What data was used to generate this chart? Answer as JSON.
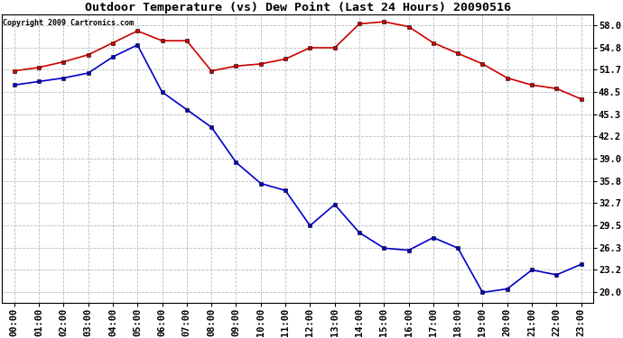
{
  "title": "Outdoor Temperature (vs) Dew Point (Last 24 Hours) 20090516",
  "copyright_text": "Copyright 2009 Cartronics.com",
  "x_labels": [
    "00:00",
    "01:00",
    "02:00",
    "03:00",
    "04:00",
    "05:00",
    "06:00",
    "07:00",
    "08:00",
    "09:00",
    "10:00",
    "11:00",
    "12:00",
    "13:00",
    "14:00",
    "15:00",
    "16:00",
    "17:00",
    "18:00",
    "19:00",
    "20:00",
    "21:00",
    "22:00",
    "23:00"
  ],
  "temp_data": [
    51.5,
    52.0,
    52.8,
    53.8,
    55.5,
    57.2,
    55.8,
    55.8,
    51.5,
    52.2,
    52.5,
    53.2,
    54.8,
    54.8,
    58.2,
    58.5,
    57.8,
    55.5,
    54.0,
    52.5,
    50.5,
    49.5,
    49.0,
    47.5
  ],
  "dew_data": [
    49.5,
    50.0,
    50.5,
    51.2,
    53.5,
    55.2,
    48.5,
    46.0,
    43.5,
    38.5,
    35.5,
    34.5,
    29.5,
    32.5,
    28.5,
    26.3,
    26.0,
    27.8,
    26.3,
    20.0,
    20.5,
    23.2,
    22.5,
    24.0
  ],
  "temp_color": "#cc0000",
  "dew_color": "#0000cc",
  "background_color": "#ffffff",
  "grid_color": "#bbbbbb",
  "yticks": [
    20.0,
    23.2,
    26.3,
    29.5,
    32.7,
    35.8,
    39.0,
    42.2,
    45.3,
    48.5,
    51.7,
    54.8,
    58.0
  ],
  "ymin": 18.5,
  "ymax": 59.5,
  "title_fontsize": 9.5,
  "tick_fontsize": 7.5,
  "copyright_fontsize": 6.0,
  "marker_size": 3.0,
  "line_width": 1.2
}
